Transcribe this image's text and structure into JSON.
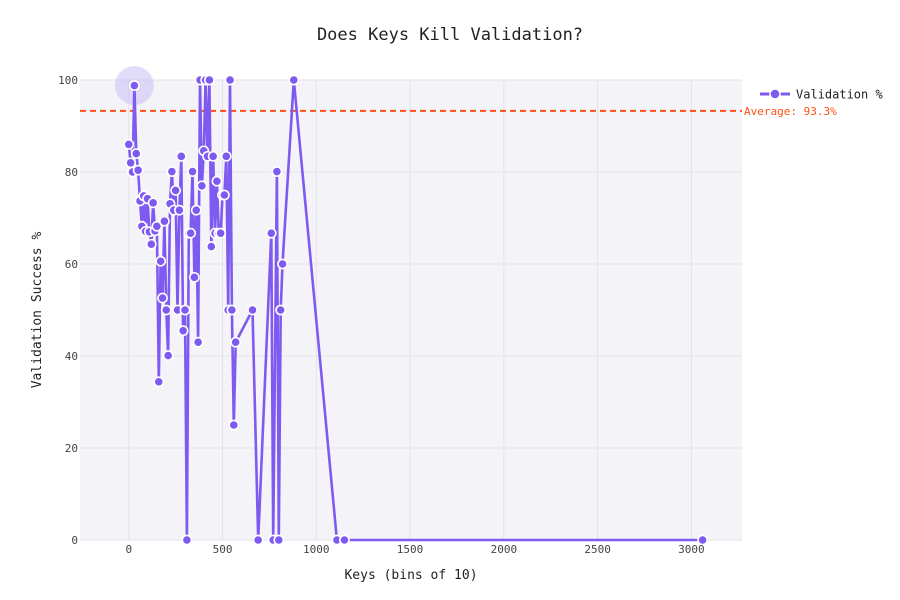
{
  "chart_data": {
    "type": "line",
    "title": "Does Keys Kill Validation?",
    "xlabel": "Keys (bins of 10)",
    "ylabel": "Validation Success %",
    "xlim": [
      -260,
      3270
    ],
    "ylim": [
      0,
      100
    ],
    "x_ticks": [
      0,
      500,
      1000,
      1500,
      2000,
      2500,
      3000
    ],
    "y_ticks": [
      0,
      20,
      40,
      60,
      80,
      100
    ],
    "grid": true,
    "legend_position": "top-right",
    "colors": {
      "series": "#7f5af0",
      "average": "#ff4f12",
      "plot_bg": "#f4f4f8",
      "grid": "#e2e2e8",
      "highlight": "#c8c0f4"
    },
    "series": [
      {
        "name": "Validation %",
        "x": [
          0,
          10,
          20,
          30,
          40,
          50,
          60,
          70,
          80,
          90,
          100,
          110,
          120,
          130,
          140,
          150,
          160,
          170,
          180,
          190,
          200,
          210,
          220,
          230,
          240,
          250,
          260,
          270,
          280,
          290,
          300,
          310,
          320,
          330,
          340,
          350,
          360,
          370,
          380,
          390,
          400,
          410,
          420,
          430,
          440,
          450,
          460,
          470,
          480,
          490,
          500,
          510,
          520,
          530,
          540,
          550,
          560,
          570,
          660,
          690,
          760,
          770,
          790,
          800,
          810,
          820,
          880,
          1110,
          1150,
          3060
        ],
        "values": [
          86,
          82,
          80,
          98.8,
          84,
          80.4,
          73.7,
          68.2,
          74.8,
          67.1,
          74.2,
          67,
          64.3,
          73.3,
          67.2,
          68.2,
          34.4,
          60.6,
          52.6,
          69.3,
          50,
          40.1,
          73.1,
          80.1,
          71.7,
          76,
          50,
          71.7,
          83.4,
          45.5,
          50,
          0,
          66.7,
          66.7,
          80.1,
          57.1,
          71.7,
          43,
          100,
          77,
          84.6,
          100,
          83.4,
          100,
          63.8,
          83.4,
          66.7,
          78,
          66.7,
          66.7,
          75,
          75,
          83.4,
          50,
          100,
          50,
          25,
          43,
          50,
          0,
          66.7,
          0,
          80.1,
          0,
          50,
          60,
          100,
          0,
          0,
          0
        ]
      }
    ],
    "average": {
      "value": 93.3,
      "label": "Average: 93.3%"
    },
    "highlight_x": 30
  }
}
